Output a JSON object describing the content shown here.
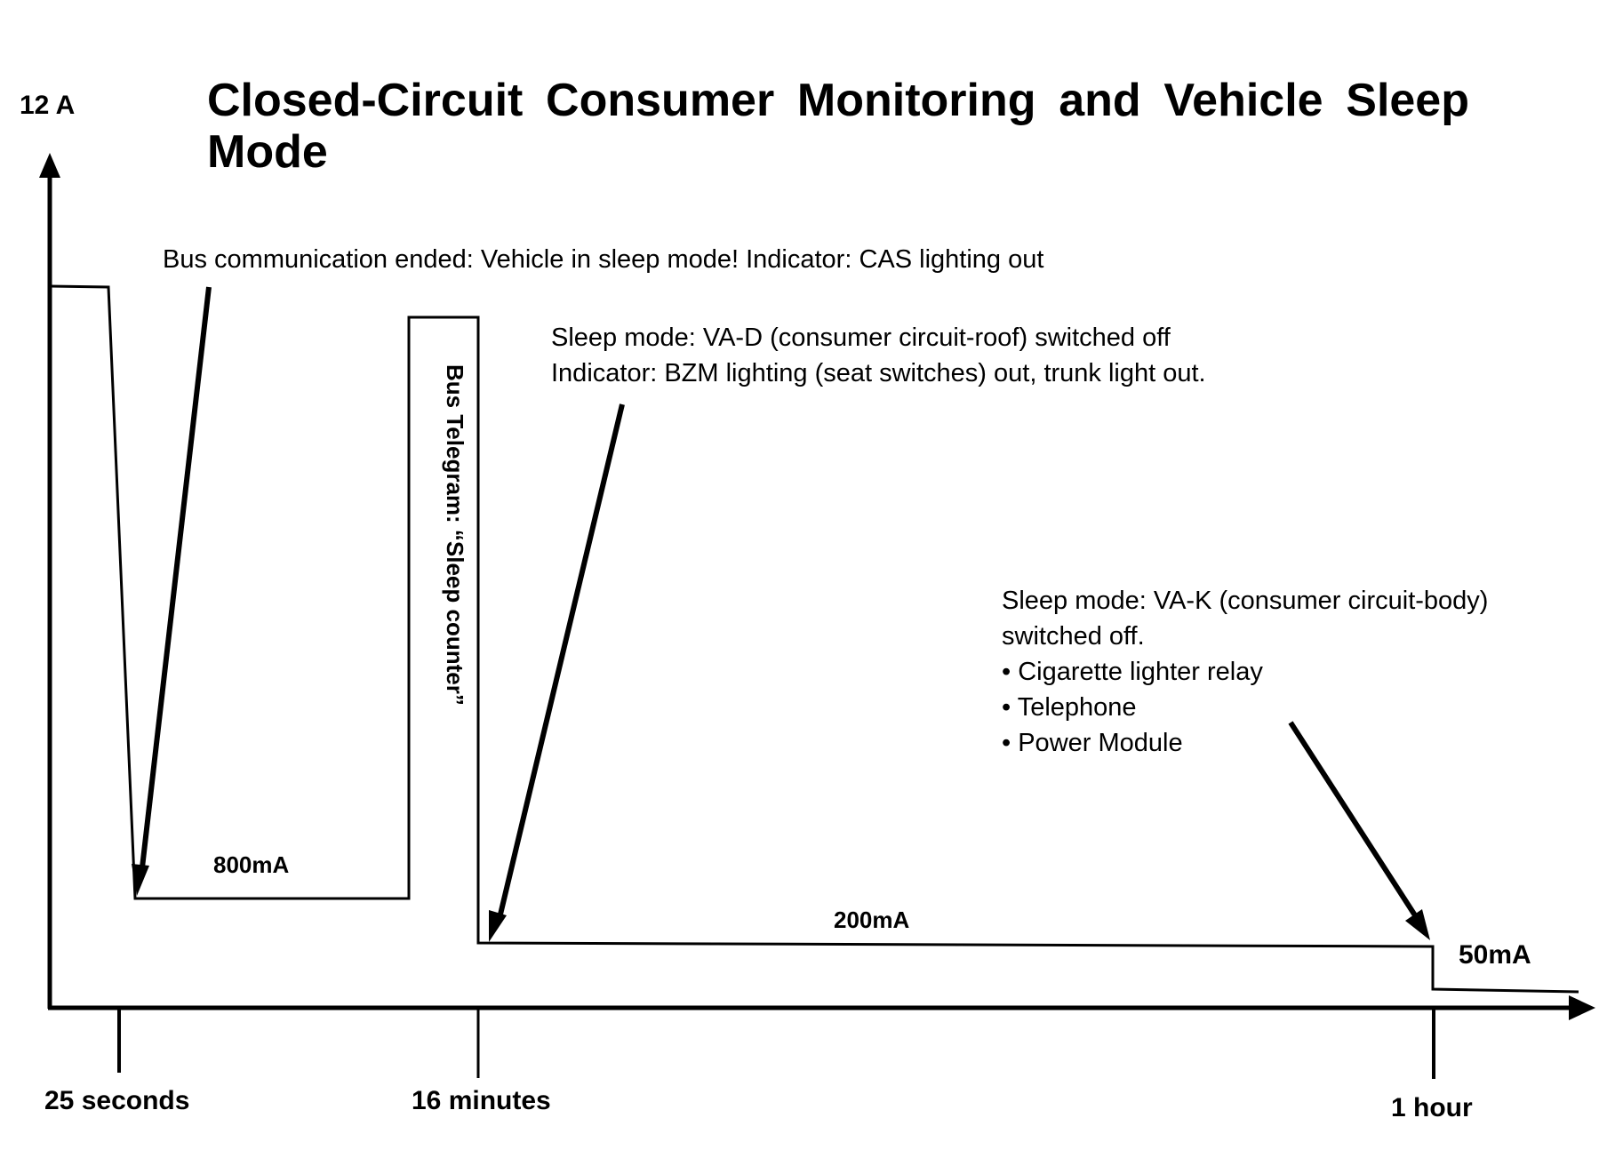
{
  "title_line1": "Closed-Circuit Consumer Monitoring and Vehicle Sleep",
  "title_line2": "Mode",
  "y_axis_label": "12 A",
  "annotations": {
    "bus_comm": "Bus communication ended: Vehicle in sleep mode!  Indicator: CAS lighting out",
    "vad_line1": "Sleep mode: VA-D (consumer circuit-roof) switched off",
    "vad_line2": "Indicator: BZM lighting (seat switches) out, trunk light out.",
    "vak_line1": "Sleep mode: VA-K (consumer circuit-body)",
    "vak_line2": "switched off.",
    "vak_items": [
      "Cigarette lighter relay",
      "Telephone",
      "Power Module"
    ],
    "bus_telegram": "Bus Telegram: “Sleep counter”"
  },
  "levels": {
    "l800": "800mA",
    "l200": "200mA",
    "l50": "50mA"
  },
  "ticks": [
    "25 seconds",
    "16 minutes",
    "1 hour"
  ],
  "bullet": "•"
}
